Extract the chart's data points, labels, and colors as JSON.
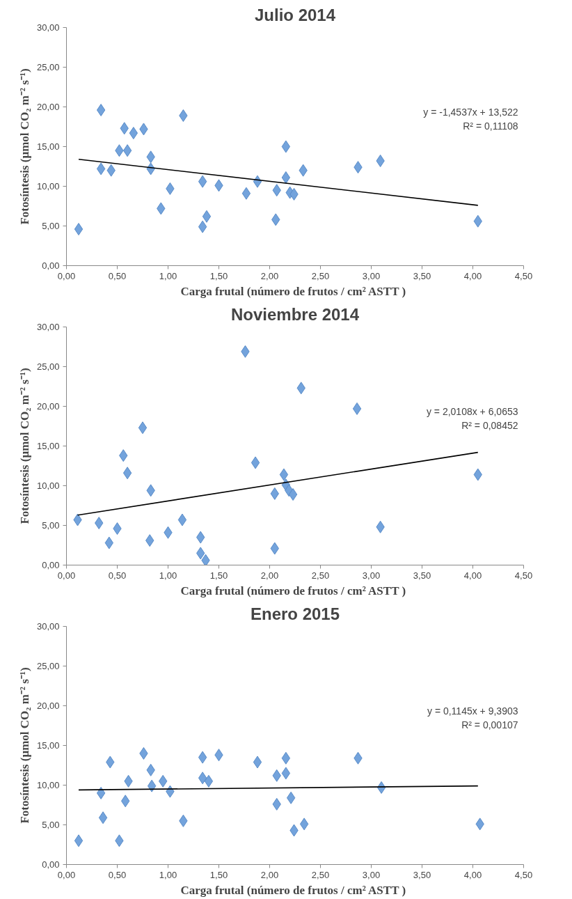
{
  "chart_data": [
    {
      "type": "scatter",
      "title": "Julio 2014",
      "xlabel": "Carga frutal  (número de frutos / cm² ASTT )",
      "ylabel": "Fotosíntesis (µmol CO₂ m⁻² s⁻¹)",
      "marker": "diamond",
      "grid": false,
      "xlim": [
        0,
        4.5
      ],
      "ylim": [
        0,
        30
      ],
      "xticks": [
        {
          "value": 0,
          "label": "0,00"
        },
        {
          "value": 0.5,
          "label": "0,50"
        },
        {
          "value": 1,
          "label": "1,00"
        },
        {
          "value": 1.5,
          "label": "1,50"
        },
        {
          "value": 2,
          "label": "2,00"
        },
        {
          "value": 2.5,
          "label": "2,50"
        },
        {
          "value": 3,
          "label": "3,00"
        },
        {
          "value": 3.5,
          "label": "3,50"
        },
        {
          "value": 4,
          "label": "4,00"
        },
        {
          "value": 4.5,
          "label": "4,50"
        }
      ],
      "yticks": [
        {
          "value": 0,
          "label": "0,00"
        },
        {
          "value": 5,
          "label": "5,00"
        },
        {
          "value": 10,
          "label": "10,00"
        },
        {
          "value": 15,
          "label": "15,00"
        },
        {
          "value": 20,
          "label": "20,00"
        },
        {
          "value": 25,
          "label": "25,00"
        },
        {
          "value": 30,
          "label": "30,00"
        }
      ],
      "annotations": [
        "y = -1,4537x + 13,522",
        "R² = 0,11108"
      ],
      "series": [
        {
          "color": "#73a3dc",
          "x": [
            0.12,
            0.34,
            0.34,
            0.44,
            0.52,
            0.6,
            0.57,
            0.66,
            0.76,
            0.83,
            0.83,
            1.02,
            0.93,
            1.15,
            1.34,
            1.34,
            1.38,
            1.5,
            1.77,
            1.88,
            2.06,
            2.07,
            2.16,
            2.16,
            2.2,
            2.24,
            2.33,
            2.87,
            3.09,
            4.05
          ],
          "values": [
            4.6,
            19.6,
            12.2,
            12.0,
            14.5,
            14.5,
            17.3,
            16.7,
            17.2,
            13.7,
            12.2,
            9.7,
            7.2,
            18.9,
            10.6,
            4.9,
            6.2,
            10.1,
            9.1,
            10.6,
            5.8,
            9.5,
            15.0,
            11.1,
            9.2,
            9.0,
            12.0,
            12.4,
            13.2,
            5.6
          ]
        },
        {
          "type": "line",
          "color": "#000000",
          "marker": "none",
          "x": [
            0.12,
            4.05
          ],
          "values": [
            13.4,
            7.6
          ]
        }
      ]
    },
    {
      "type": "scatter",
      "title": "Noviembre 2014",
      "xlabel": "Carga frutal  (número de frutos / cm² ASTT )",
      "ylabel": "Fotosíntesis (µmol CO₂ m⁻² s⁻¹)",
      "marker": "diamond",
      "grid": false,
      "xlim": [
        0,
        4.5
      ],
      "ylim": [
        0,
        30
      ],
      "xticks": [
        {
          "value": 0,
          "label": "0,00"
        },
        {
          "value": 0.5,
          "label": "0,50"
        },
        {
          "value": 1,
          "label": "1,00"
        },
        {
          "value": 1.5,
          "label": "1,50"
        },
        {
          "value": 2,
          "label": "2,00"
        },
        {
          "value": 2.5,
          "label": "2,50"
        },
        {
          "value": 3,
          "label": "3,00"
        },
        {
          "value": 3.5,
          "label": "3,50"
        },
        {
          "value": 4,
          "label": "4,00"
        },
        {
          "value": 4.5,
          "label": "4,50"
        }
      ],
      "yticks": [
        {
          "value": 0,
          "label": "0,00"
        },
        {
          "value": 5,
          "label": "5,00"
        },
        {
          "value": 10,
          "label": "10,00"
        },
        {
          "value": 15,
          "label": "15,00"
        },
        {
          "value": 20,
          "label": "20,00"
        },
        {
          "value": 25,
          "label": "25,00"
        },
        {
          "value": 30,
          "label": "30,00"
        }
      ],
      "annotations": [
        "y = 2,0108x + 6,0653",
        "R² = 0,08452"
      ],
      "series": [
        {
          "color": "#73a3dc",
          "x": [
            0.11,
            0.32,
            0.42,
            0.5,
            0.56,
            0.6,
            0.75,
            0.82,
            0.83,
            1.0,
            1.14,
            1.32,
            1.32,
            1.37,
            1.76,
            1.86,
            2.05,
            2.05,
            2.14,
            2.16,
            2.19,
            2.23,
            2.31,
            2.86,
            3.09,
            4.05
          ],
          "values": [
            5.7,
            5.3,
            2.8,
            4.6,
            13.8,
            11.6,
            17.3,
            3.1,
            9.4,
            4.1,
            5.7,
            3.5,
            1.5,
            0.6,
            26.9,
            12.9,
            9.0,
            2.1,
            11.4,
            10.1,
            9.4,
            8.9,
            22.3,
            19.7,
            4.8,
            11.4
          ]
        },
        {
          "type": "line",
          "color": "#000000",
          "marker": "none",
          "x": [
            0.11,
            4.05
          ],
          "values": [
            6.3,
            14.2
          ]
        }
      ]
    },
    {
      "type": "scatter",
      "title": "Enero 2015",
      "xlabel": "Carga frutal  (número de frutos / cm² ASTT )",
      "ylabel": "Fotosíntesis (µmol CO₂ m⁻² s⁻¹)",
      "marker": "diamond",
      "grid": false,
      "xlim": [
        0,
        4.5
      ],
      "ylim": [
        0,
        30
      ],
      "xticks": [
        {
          "value": 0,
          "label": "0,00"
        },
        {
          "value": 0.5,
          "label": "0,50"
        },
        {
          "value": 1,
          "label": "1,00"
        },
        {
          "value": 1.5,
          "label": "1,50"
        },
        {
          "value": 2,
          "label": "2,00"
        },
        {
          "value": 2.5,
          "label": "2,50"
        },
        {
          "value": 3,
          "label": "3,00"
        },
        {
          "value": 3.5,
          "label": "3,50"
        },
        {
          "value": 4,
          "label": "4,00"
        },
        {
          "value": 4.5,
          "label": "4,50"
        }
      ],
      "yticks": [
        {
          "value": 0,
          "label": "0,00"
        },
        {
          "value": 5,
          "label": "5,00"
        },
        {
          "value": 10,
          "label": "10,00"
        },
        {
          "value": 15,
          "label": "15,00"
        },
        {
          "value": 20,
          "label": "20,00"
        },
        {
          "value": 25,
          "label": "25,00"
        },
        {
          "value": 30,
          "label": "30,00"
        }
      ],
      "annotations": [
        "y = 0,1145x + 9,3903",
        "R² = 0,00107"
      ],
      "series": [
        {
          "color": "#73a3dc",
          "x": [
            0.12,
            0.34,
            0.36,
            0.43,
            0.52,
            0.58,
            0.61,
            0.76,
            0.83,
            0.84,
            0.95,
            1.02,
            1.15,
            1.34,
            1.34,
            1.4,
            1.5,
            1.88,
            2.07,
            2.07,
            2.16,
            2.16,
            2.21,
            2.24,
            2.34,
            2.87,
            3.1,
            4.07
          ],
          "values": [
            3.0,
            9.0,
            5.9,
            12.9,
            3.0,
            8.0,
            10.5,
            14.0,
            11.9,
            9.9,
            10.5,
            9.2,
            5.5,
            13.5,
            10.9,
            10.5,
            13.8,
            12.9,
            11.2,
            7.6,
            13.4,
            11.5,
            8.4,
            4.3,
            5.1,
            13.4,
            9.7,
            5.1
          ]
        },
        {
          "type": "line",
          "color": "#000000",
          "marker": "none",
          "x": [
            0.12,
            4.05
          ],
          "values": [
            9.4,
            9.9
          ]
        }
      ]
    }
  ]
}
